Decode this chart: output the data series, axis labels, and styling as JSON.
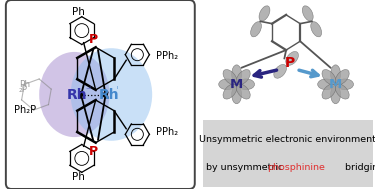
{
  "background_color": "#ffffff",
  "caption_line1": "Unsymmetric electronic environment",
  "caption_line2_pre": "by unsymmetric ",
  "caption_word": "phosphinine",
  "caption_word_color": "#e03030",
  "caption_line2_post": " bridging",
  "caption_fontsize": 6.8,
  "fig_width": 3.75,
  "fig_height": 1.89,
  "purple_color": "#9b7ec8",
  "blue_color": "#88bbee",
  "P_color": "#cc0000",
  "rh1_color": "#3535aa",
  "rh2_color": "#4488cc",
  "arrow_left_color": "#2a2580",
  "arrow_right_color": "#5599cc",
  "M_left_color": "#2a2580",
  "M_right_color": "#5599cc",
  "gray_structure": "#888888",
  "gray_orb": "#999999"
}
